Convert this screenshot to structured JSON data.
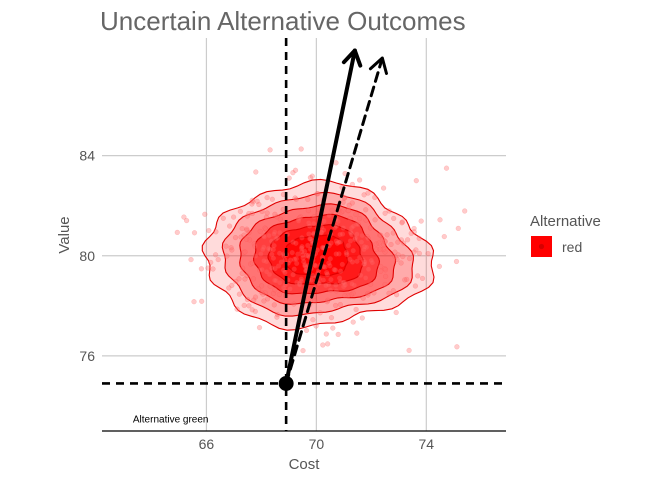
{
  "chart_data": {
    "type": "scatter",
    "title": "Uncertain Alternative Outcomes",
    "xlabel": "Cost",
    "ylabel": "Value",
    "xlim": [
      62.2,
      76.9
    ],
    "ylim": [
      73.0,
      88.7
    ],
    "x_ticks": [
      "66",
      "70",
      "74"
    ],
    "x_tick_values": [
      66,
      70,
      74
    ],
    "y_ticks": [
      "76",
      "80",
      "84"
    ],
    "y_tick_values": [
      76,
      80,
      84
    ],
    "grid": true,
    "legend": {
      "title": "Alternative",
      "position": "right",
      "entries": [
        {
          "label": "red",
          "color": "#ff0000"
        }
      ]
    },
    "series": [
      {
        "name": "red",
        "color": "#ff0000",
        "center": [
          70.0,
          80.0
        ],
        "sd": [
          1.95,
          1.45
        ],
        "approx_points": 450
      }
    ],
    "reference_point": {
      "x": 68.9,
      "y": 74.9
    },
    "reference_lines": {
      "vline_x": 68.9,
      "hline_y": 74.9
    },
    "arrows": [
      {
        "from": [
          68.9,
          74.9
        ],
        "to": [
          71.4,
          88.2
        ],
        "style": "solid"
      },
      {
        "from": [
          68.9,
          74.9
        ],
        "to": [
          72.4,
          87.9
        ],
        "style": "dashed"
      }
    ],
    "annotations": [
      {
        "text": "Alternative green",
        "x": 64.7,
        "y": 73.5
      }
    ],
    "density_contour_levels": 6
  }
}
